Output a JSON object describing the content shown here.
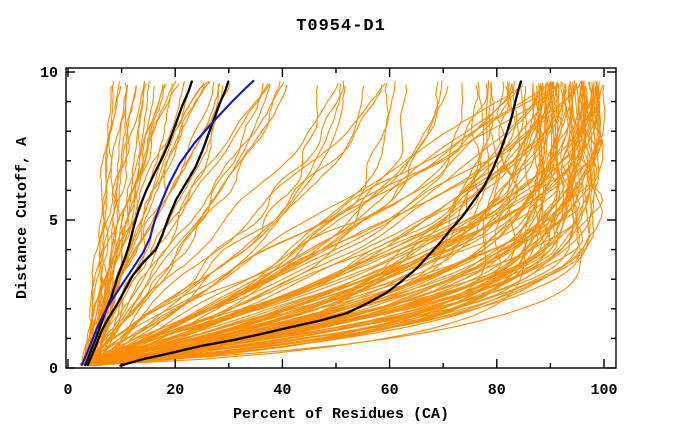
{
  "page": {
    "background": "#ffffff",
    "frame_color": "#000000"
  },
  "chart_data": {
    "type": "line",
    "title": "T0954-D1",
    "xlabel": "Percent of Residues (CA)",
    "ylabel": "Distance Cutoff, A",
    "xlim": [
      0,
      100
    ],
    "ylim": [
      0,
      10
    ],
    "x_major_ticks": [
      0,
      20,
      40,
      60,
      80,
      100
    ],
    "x_minor_tick_step": 10,
    "y_major_ticks": [
      0,
      5,
      10
    ],
    "y_minor_tick_step": 1,
    "grid": false,
    "legend": false,
    "tick_style": "inward, mirrored on all four borders",
    "colors": {
      "ensemble_orange": "#FF8C00",
      "highlight_black": "#000000",
      "highlight_blue": "#1414D6"
    },
    "highlighted_series": [
      {
        "name": "black-model-left-1",
        "color": "#000000",
        "width": 2.3,
        "points": [
          [
            3.2,
            0.1
          ],
          [
            3.8,
            0.35
          ],
          [
            4.4,
            0.65
          ],
          [
            5.2,
            1.0
          ],
          [
            6.2,
            1.5
          ],
          [
            7.2,
            2.0
          ],
          [
            8.0,
            2.35
          ],
          [
            9.3,
            3.1
          ],
          [
            10.6,
            3.7
          ],
          [
            11.4,
            4.15
          ],
          [
            12.3,
            4.8
          ],
          [
            13.4,
            5.45
          ],
          [
            14.6,
            6.0
          ],
          [
            16.2,
            6.6
          ],
          [
            17.6,
            7.1
          ],
          [
            18.8,
            7.6
          ],
          [
            20.0,
            8.2
          ],
          [
            21.4,
            8.9
          ],
          [
            22.5,
            9.35
          ],
          [
            23.1,
            9.68
          ]
        ]
      },
      {
        "name": "black-model-left-2",
        "color": "#000000",
        "width": 2.3,
        "points": [
          [
            3.7,
            0.1
          ],
          [
            4.4,
            0.4
          ],
          [
            5.3,
            0.8
          ],
          [
            6.4,
            1.3
          ],
          [
            7.6,
            1.7
          ],
          [
            9.0,
            2.1
          ],
          [
            10.2,
            2.5
          ],
          [
            12.0,
            3.1
          ],
          [
            14.2,
            3.6
          ],
          [
            16.4,
            4.0
          ],
          [
            17.6,
            4.5
          ],
          [
            18.8,
            5.1
          ],
          [
            20.2,
            5.7
          ],
          [
            22.2,
            6.3
          ],
          [
            23.8,
            6.8
          ],
          [
            25.2,
            7.4
          ],
          [
            26.6,
            8.1
          ],
          [
            28.2,
            8.9
          ],
          [
            29.4,
            9.4
          ],
          [
            29.9,
            9.68
          ]
        ]
      },
      {
        "name": "blue-model",
        "color": "#1414D6",
        "width": 2.1,
        "points": [
          [
            2.6,
            0.1
          ],
          [
            3.3,
            0.4
          ],
          [
            4.2,
            0.8
          ],
          [
            5.3,
            1.3
          ],
          [
            6.6,
            1.8
          ],
          [
            8.2,
            2.3
          ],
          [
            10.0,
            2.8
          ],
          [
            12.2,
            3.4
          ],
          [
            14.0,
            3.9
          ],
          [
            15.3,
            4.4
          ],
          [
            16.2,
            5.0
          ],
          [
            17.4,
            5.6
          ],
          [
            18.8,
            6.2
          ],
          [
            20.8,
            6.9
          ],
          [
            23.6,
            7.6
          ],
          [
            27.0,
            8.3
          ],
          [
            30.6,
            9.0
          ],
          [
            33.4,
            9.5
          ],
          [
            34.6,
            9.7
          ]
        ]
      },
      {
        "name": "black-model-right",
        "color": "#000000",
        "width": 2.3,
        "points": [
          [
            9.8,
            0.08
          ],
          [
            14.0,
            0.3
          ],
          [
            19.0,
            0.5
          ],
          [
            25.0,
            0.75
          ],
          [
            31.0,
            0.95
          ],
          [
            36.0,
            1.15
          ],
          [
            42.0,
            1.4
          ],
          [
            47.0,
            1.6
          ],
          [
            52.0,
            1.85
          ],
          [
            56.0,
            2.2
          ],
          [
            59.5,
            2.55
          ],
          [
            62.0,
            2.9
          ],
          [
            64.0,
            3.2
          ],
          [
            65.5,
            3.45
          ],
          [
            67.5,
            3.85
          ],
          [
            69.5,
            4.25
          ],
          [
            71.5,
            4.7
          ],
          [
            73.5,
            5.1
          ],
          [
            75.5,
            5.6
          ],
          [
            77.5,
            6.1
          ],
          [
            79.2,
            6.7
          ],
          [
            80.6,
            7.3
          ],
          [
            81.8,
            7.9
          ],
          [
            82.8,
            8.5
          ],
          [
            83.6,
            9.1
          ],
          [
            84.2,
            9.5
          ],
          [
            84.5,
            9.68
          ]
        ]
      }
    ],
    "orange_ensemble": {
      "description": "Approx. 150 server-model GDT curves; all start near 2-6% at ~0.1 A and end near 9.6 A; top endpoints cluster at 8-45% (steep left group), 45-72% (sparse middle), 72-100% (dense right mass, heaviest 85-100%)",
      "color": "#FF8C00",
      "width": 1.1,
      "seed": 20180954,
      "y_start_range": [
        0.08,
        0.22
      ],
      "y_end_range": [
        9.5,
        9.7
      ],
      "x_start_range": [
        2.2,
        6.5
      ],
      "groups": [
        {
          "name": "steep-left",
          "count": 38,
          "xtop_base": 8,
          "xtop_span": 34,
          "xtop_pow": 1.2,
          "a_range": [
            0.9,
            1.35
          ],
          "b_range": [
            0.7,
            1.6
          ],
          "b_pow": 1.0,
          "wave_range": [
            0.2,
            1.0
          ]
        },
        {
          "name": "middle",
          "count": 14,
          "xtop_base": 44,
          "xtop_span": 28,
          "xtop_pow": 1.0,
          "a_range": [
            0.9,
            1.2
          ],
          "b_range": [
            1.2,
            2.6
          ],
          "b_pow": 1.0,
          "wave_range": [
            0.4,
            1.6
          ]
        },
        {
          "name": "right-mass",
          "count": 96,
          "xtop_base": 72,
          "xtop_span": 28,
          "xtop_pow": 0.5,
          "a_range": [
            0.85,
            1.25
          ],
          "b_range": [
            1.0,
            8.0
          ],
          "b_pow": 1.4,
          "wave_range": [
            0.4,
            2.0
          ]
        }
      ]
    }
  }
}
